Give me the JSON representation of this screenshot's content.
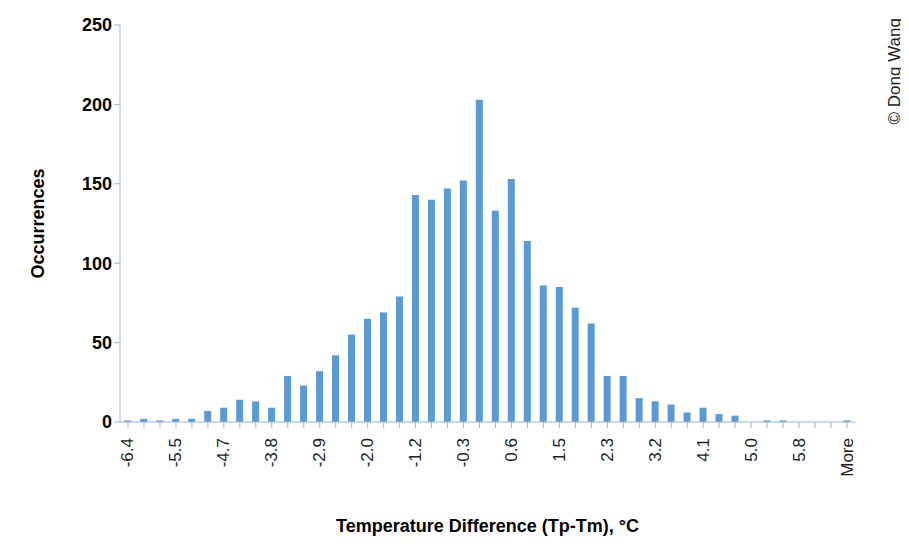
{
  "chart_data": {
    "type": "bar",
    "x_label": "Temperature Difference (Tp-Tm), °C",
    "y_label": "Occurrences",
    "annotation": "© Dong Wang",
    "categories": [
      "-6.4",
      null,
      null,
      "-5.5",
      null,
      null,
      "-4.7",
      null,
      null,
      "-3.8",
      null,
      null,
      "-2.9",
      null,
      null,
      "-2.0",
      null,
      null,
      "-1.2",
      null,
      null,
      "-0.3",
      null,
      null,
      "0.6",
      null,
      null,
      "1.5",
      null,
      null,
      "2.3",
      null,
      null,
      "3.2",
      null,
      null,
      "4.1",
      null,
      null,
      "5.0",
      null,
      null,
      "5.8",
      null,
      null,
      "More"
    ],
    "values": [
      1,
      2,
      1,
      2,
      2,
      7,
      9,
      14,
      13,
      9,
      29,
      23,
      32,
      42,
      55,
      65,
      69,
      79,
      143,
      140,
      147,
      152,
      203,
      133,
      153,
      114,
      86,
      85,
      72,
      62,
      29,
      29,
      15,
      13,
      11,
      6,
      9,
      5,
      4,
      0,
      1,
      1,
      0,
      0,
      0,
      1
    ],
    "color": "#5b9bd5",
    "ylim": [
      0,
      250
    ],
    "yticks": [
      0,
      50,
      100,
      150,
      200,
      250
    ],
    "grid": false
  }
}
